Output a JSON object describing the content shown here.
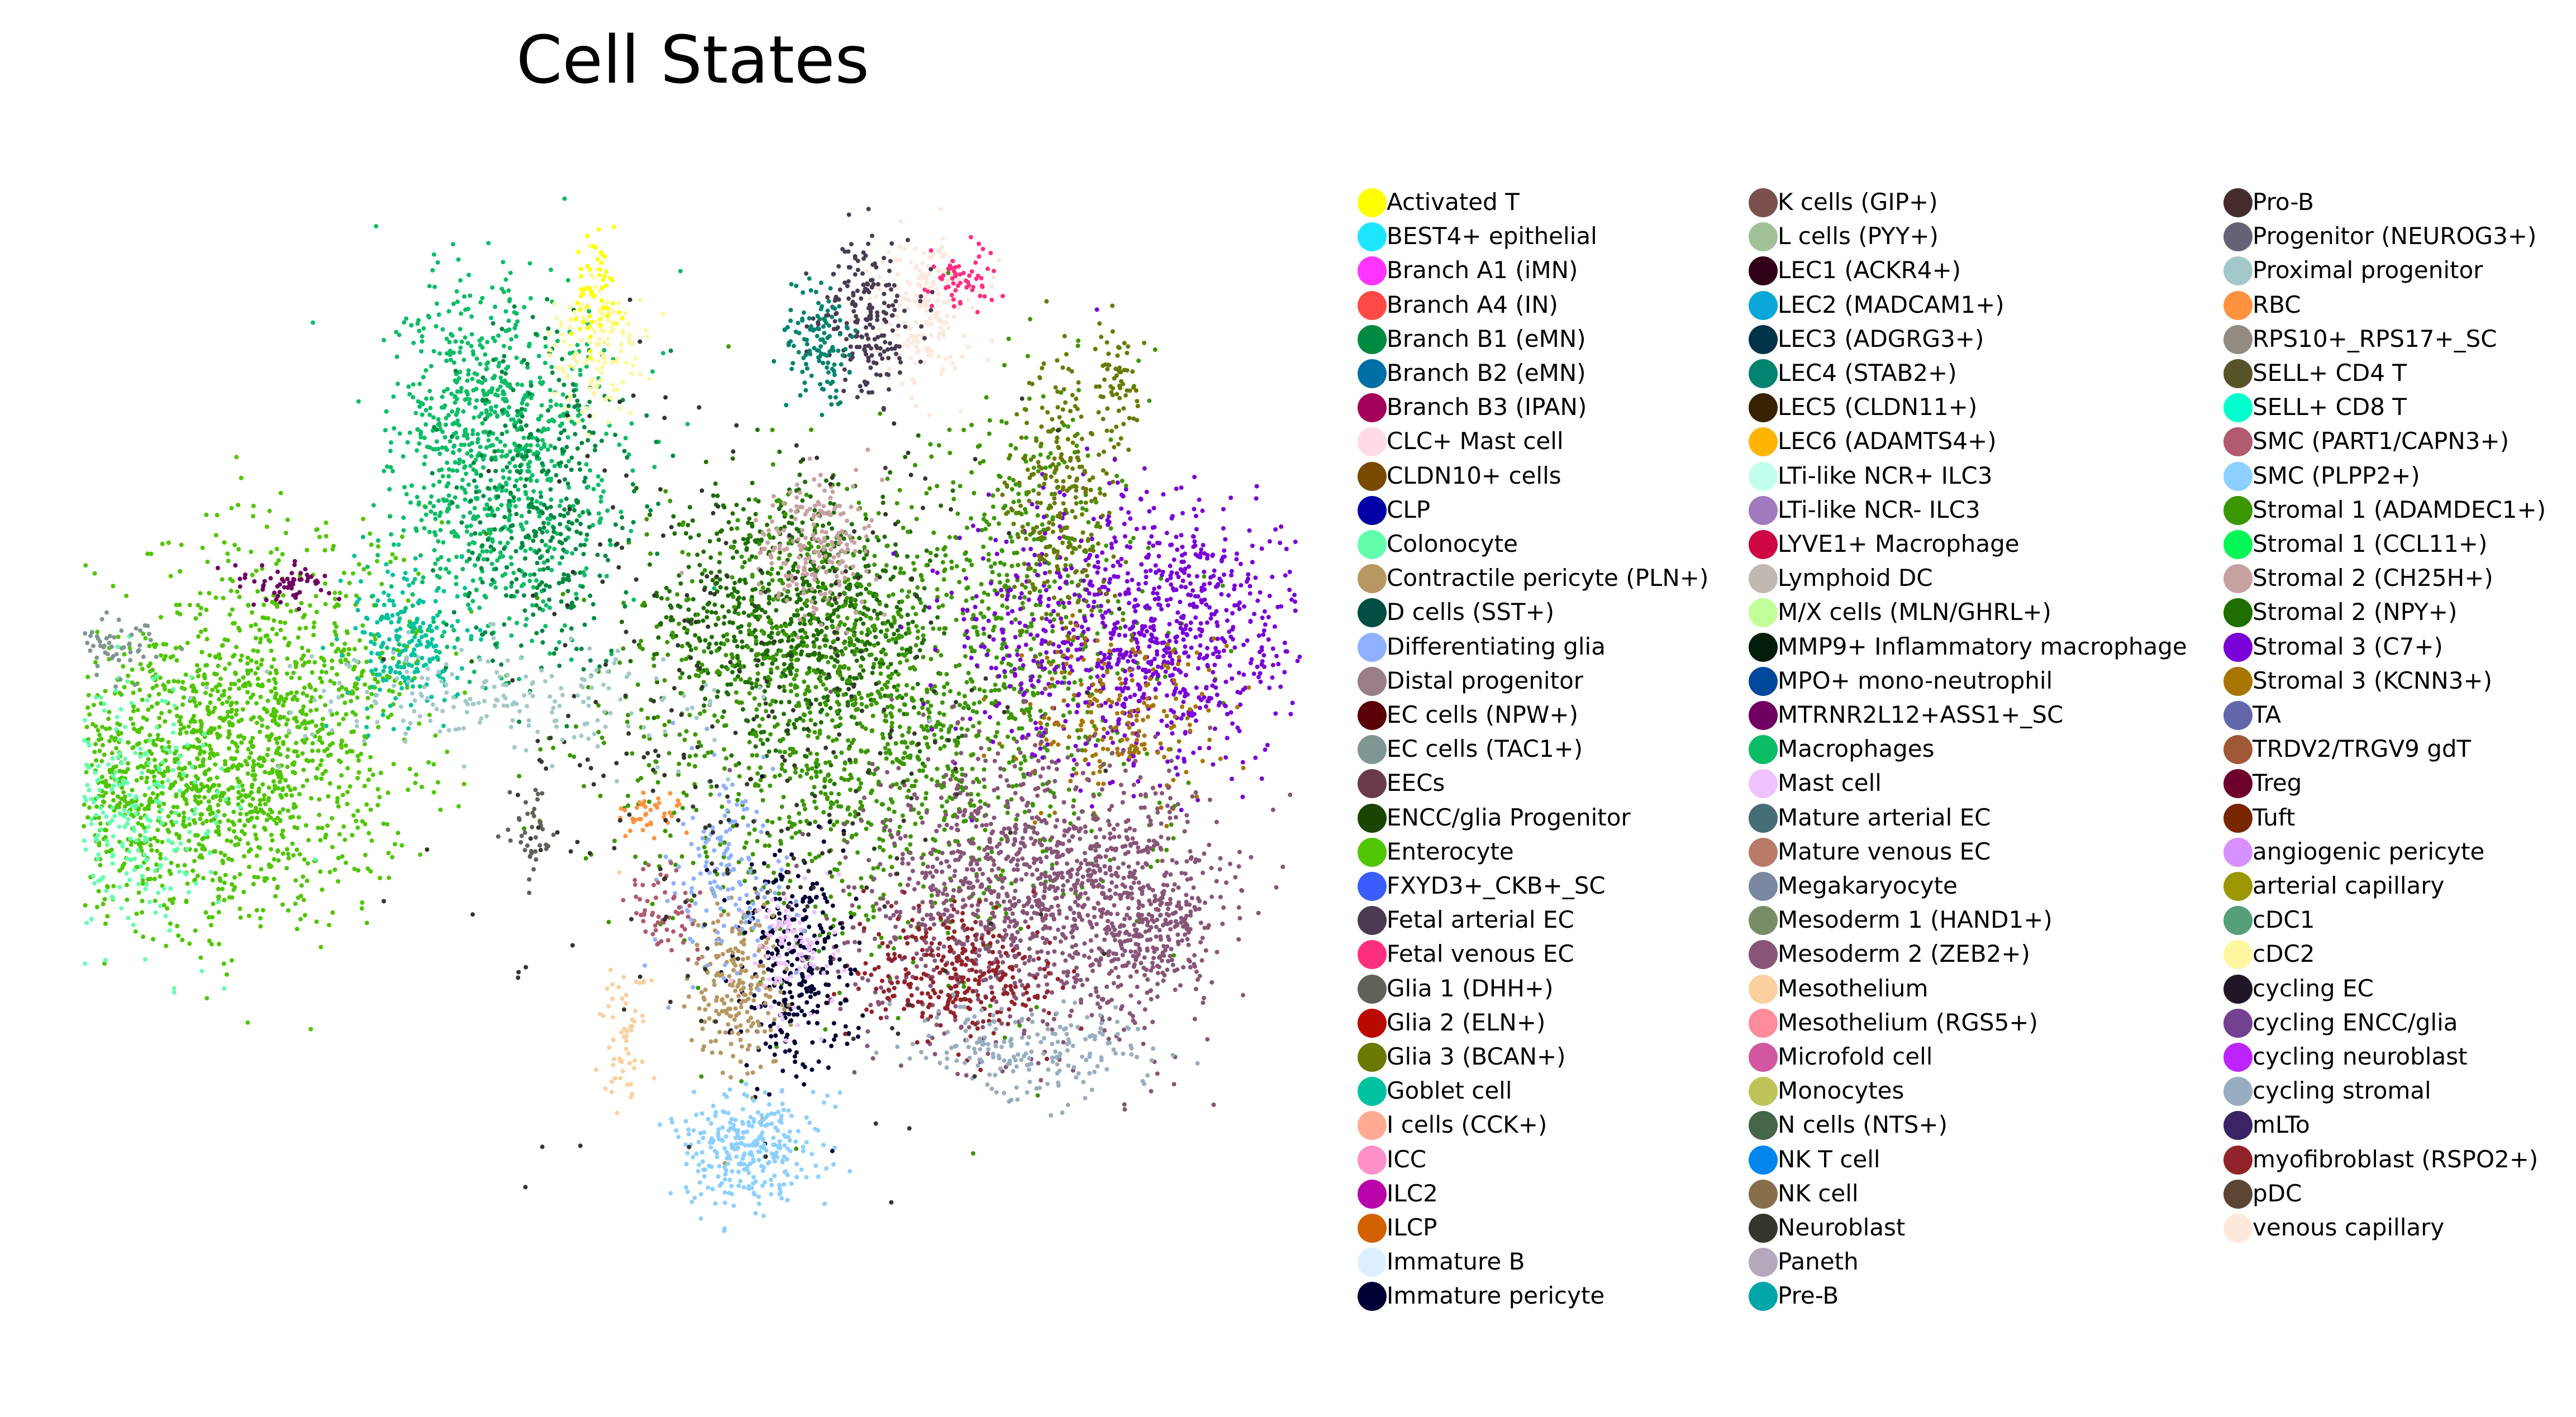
{
  "chart_data": {
    "type": "scatter",
    "title": "Cell States",
    "xlabel": "",
    "ylabel": "",
    "grid": false,
    "axes_visible": false,
    "legend_placement": "right",
    "legend": [
      {
        "name": "Activated T",
        "color": "#ffff00"
      },
      {
        "name": "BEST4+ epithelial",
        "color": "#1ce6ff"
      },
      {
        "name": "Branch A1 (iMN)",
        "color": "#ff34ff"
      },
      {
        "name": "Branch A4 (IN)",
        "color": "#ff4a46"
      },
      {
        "name": "Branch B1 (eMN)",
        "color": "#008941"
      },
      {
        "name": "Branch B2 (eMN)",
        "color": "#006fa6"
      },
      {
        "name": "Branch B3 (IPAN)",
        "color": "#a30059"
      },
      {
        "name": "CLC+ Mast cell",
        "color": "#ffdbe5"
      },
      {
        "name": "CLDN10+ cells",
        "color": "#7a4900"
      },
      {
        "name": "CLP",
        "color": "#0000a6"
      },
      {
        "name": "Colonocyte",
        "color": "#63ffac"
      },
      {
        "name": "Contractile pericyte (PLN+)",
        "color": "#b79762"
      },
      {
        "name": "D cells (SST+)",
        "color": "#004d43"
      },
      {
        "name": "Differentiating glia",
        "color": "#8fb0ff"
      },
      {
        "name": "Distal progenitor",
        "color": "#997d87"
      },
      {
        "name": "EC cells (NPW+)",
        "color": "#5a0007"
      },
      {
        "name": "EC cells (TAC1+)",
        "color": "#809693"
      },
      {
        "name": "EECs",
        "color": "#6a3a4c"
      },
      {
        "name": "ENCC/glia Progenitor",
        "color": "#1b4400"
      },
      {
        "name": "Enterocyte",
        "color": "#4fc601"
      },
      {
        "name": "FXYD3+_CKB+_SC",
        "color": "#3b5dff"
      },
      {
        "name": "Fetal arterial EC",
        "color": "#4a3b53"
      },
      {
        "name": "Fetal venous EC",
        "color": "#ff2f80"
      },
      {
        "name": "Glia 1 (DHH+)",
        "color": "#61615a"
      },
      {
        "name": "Glia 2 (ELN+)",
        "color": "#ba0900"
      },
      {
        "name": "Glia 3 (BCAN+)",
        "color": "#6b7900"
      },
      {
        "name": "Goblet cell",
        "color": "#00c2a0"
      },
      {
        "name": "I cells (CCK+)",
        "color": "#ffaa92"
      },
      {
        "name": "ICC",
        "color": "#ff90c9"
      },
      {
        "name": "ILC2",
        "color": "#b903aa"
      },
      {
        "name": "ILCP",
        "color": "#d16100"
      },
      {
        "name": "Immature B",
        "color": "#ddefff"
      },
      {
        "name": "Immature pericyte",
        "color": "#000035"
      },
      {
        "name": "K cells (GIP+)",
        "color": "#7b4f4b"
      },
      {
        "name": "L cells (PYY+)",
        "color": "#a1c299"
      },
      {
        "name": "LEC1 (ACKR4+)",
        "color": "#300018"
      },
      {
        "name": "LEC2 (MADCAM1+)",
        "color": "#0aa6d8"
      },
      {
        "name": "LEC3 (ADGRG3+)",
        "color": "#013349"
      },
      {
        "name": "LEC4 (STAB2+)",
        "color": "#00846f"
      },
      {
        "name": "LEC5 (CLDN11+)",
        "color": "#372101"
      },
      {
        "name": "LEC6 (ADAMTS4+)",
        "color": "#ffb500"
      },
      {
        "name": "LTi-like NCR+ ILC3",
        "color": "#c2ffed"
      },
      {
        "name": "LTi-like NCR- ILC3",
        "color": "#a079bf"
      },
      {
        "name": "LYVE1+ Macrophage",
        "color": "#cc0744"
      },
      {
        "name": "Lymphoid DC",
        "color": "#c0b9b2"
      },
      {
        "name": "M/X cells (MLN/GHRL+)",
        "color": "#c2ff99"
      },
      {
        "name": "MMP9+ Inflammatory macrophage",
        "color": "#001e09"
      },
      {
        "name": "MPO+ mono-neutrophil",
        "color": "#00489c"
      },
      {
        "name": "MTRNR2L12+ASS1+_SC",
        "color": "#6f0062"
      },
      {
        "name": "Macrophages",
        "color": "#0cbd66"
      },
      {
        "name": "Mast cell",
        "color": "#eec3ff"
      },
      {
        "name": "Mature arterial EC",
        "color": "#456d75"
      },
      {
        "name": "Mature venous EC",
        "color": "#b77b68"
      },
      {
        "name": "Megakaryocyte",
        "color": "#7a87a1"
      },
      {
        "name": "Mesoderm 1 (HAND1+)",
        "color": "#788d66"
      },
      {
        "name": "Mesoderm 2 (ZEB2+)",
        "color": "#885578"
      },
      {
        "name": "Mesothelium",
        "color": "#fad09f"
      },
      {
        "name": "Mesothelium (RGS5+)",
        "color": "#ff8a9a"
      },
      {
        "name": "Microfold cell",
        "color": "#d157a0"
      },
      {
        "name": "Monocytes",
        "color": "#bec459"
      },
      {
        "name": "N cells (NTS+)",
        "color": "#456648"
      },
      {
        "name": "NK T cell",
        "color": "#0086ed"
      },
      {
        "name": "NK cell",
        "color": "#886f4c"
      },
      {
        "name": "Neuroblast",
        "color": "#34362d"
      },
      {
        "name": "Paneth",
        "color": "#b4a8bd"
      },
      {
        "name": "Pre-B",
        "color": "#00a6aa"
      },
      {
        "name": "Pro-B",
        "color": "#452c2c"
      },
      {
        "name": "Progenitor (NEUROG3+)",
        "color": "#636375"
      },
      {
        "name": "Proximal progenitor",
        "color": "#a3c8c9"
      },
      {
        "name": "RBC",
        "color": "#ff913f"
      },
      {
        "name": "RPS10+_RPS17+_SC",
        "color": "#938a81"
      },
      {
        "name": "SELL+ CD4 T",
        "color": "#575329"
      },
      {
        "name": "SELL+ CD8 T",
        "color": "#00fecf"
      },
      {
        "name": "SMC (PART1/CAPN3+)",
        "color": "#b05b6f"
      },
      {
        "name": "SMC (PLPP2+)",
        "color": "#8cd0ff"
      },
      {
        "name": "Stromal 1 (ADAMDEC1+)",
        "color": "#3b9700"
      },
      {
        "name": "Stromal 1 (CCL11+)",
        "color": "#04f757"
      },
      {
        "name": "Stromal 2 (CH25H+)",
        "color": "#c8a1a1"
      },
      {
        "name": "Stromal 2 (NPY+)",
        "color": "#1e6e00"
      },
      {
        "name": "Stromal 3 (C7+)",
        "color": "#7900d7"
      },
      {
        "name": "Stromal 3 (KCNN3+)",
        "color": "#a77500"
      },
      {
        "name": "TA",
        "color": "#6367a9"
      },
      {
        "name": "TRDV2/TRGV9 gdT",
        "color": "#a05837"
      },
      {
        "name": "Treg",
        "color": "#6b002c"
      },
      {
        "name": "Tuft",
        "color": "#772600"
      },
      {
        "name": "angiogenic pericyte",
        "color": "#d790ff"
      },
      {
        "name": "arterial capillary",
        "color": "#9b9700"
      },
      {
        "name": "cDC1",
        "color": "#549e79"
      },
      {
        "name": "cDC2",
        "color": "#fff69f"
      },
      {
        "name": "cycling EC",
        "color": "#201625"
      },
      {
        "name": "cycling ENCC/glia",
        "color": "#72418f"
      },
      {
        "name": "cycling neuroblast",
        "color": "#bc23ff"
      },
      {
        "name": "cycling stromal",
        "color": "#99adc0"
      },
      {
        "name": "mLTo",
        "color": "#3a2465"
      },
      {
        "name": "myofibroblast (RSPO2+)",
        "color": "#922329"
      },
      {
        "name": "pDC",
        "color": "#5b4534"
      },
      {
        "name": "venous capillary",
        "color": "#fde8dc"
      }
    ]
  }
}
